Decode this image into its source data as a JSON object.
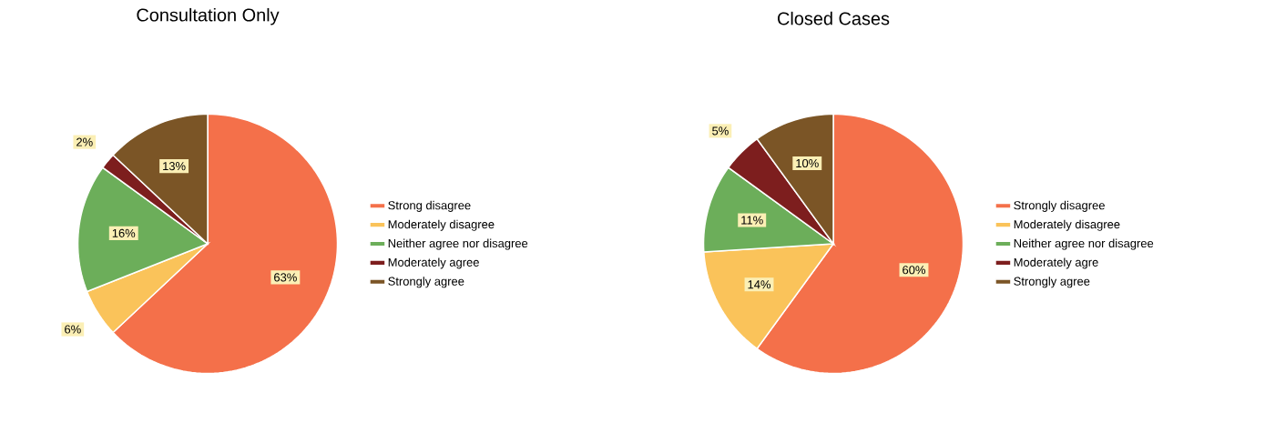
{
  "chart_data": [
    {
      "type": "pie",
      "title": "Consultation Only",
      "legend": "right",
      "categories": [
        "Strong disagree",
        "Moderately disagree",
        "Neither agree nor disagree",
        "Moderately agree",
        "Strongly agree"
      ],
      "values": [
        63,
        6,
        16,
        2,
        13
      ],
      "value_labels": [
        "63%",
        "6%",
        "16%",
        "2%",
        "13%"
      ],
      "colors": [
        "#f4704a",
        "#fac35a",
        "#6cae5a",
        "#7d1e1e",
        "#7b5526"
      ]
    },
    {
      "type": "pie",
      "title": "Closed Cases",
      "legend": "right",
      "categories": [
        "Strongly disagree",
        "Moderately disagree",
        "Neither agree nor disagree",
        "Moderately agre",
        "Strongly agree"
      ],
      "values": [
        60,
        14,
        11,
        5,
        10
      ],
      "value_labels": [
        "60%",
        "14%",
        "11%",
        "5%",
        "10%"
      ],
      "colors": [
        "#f4704a",
        "#fac35a",
        "#6cae5a",
        "#7d1e1e",
        "#7b5526"
      ]
    }
  ]
}
